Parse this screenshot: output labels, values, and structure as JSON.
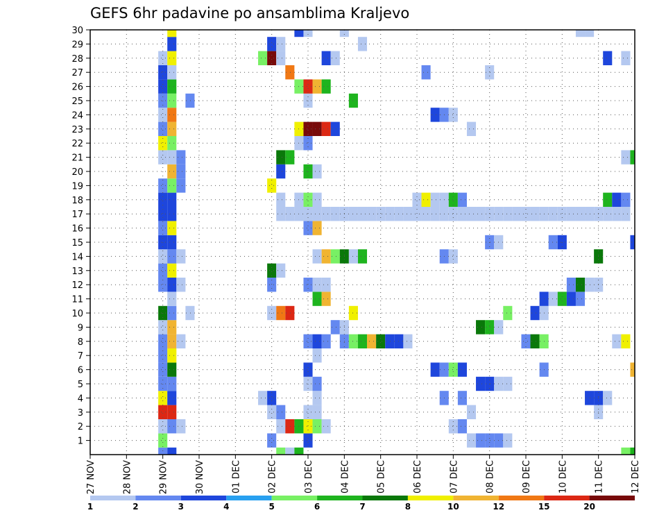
{
  "chart_data": {
    "type": "heatmap",
    "title": "GEFS 6hr padavine po ansamblima Kraljevo",
    "xlabel": "",
    "ylabel": "",
    "x_unit": "6-hour step",
    "x_start_label": "27 NOV",
    "x_ticks": [
      "27 NOV",
      "28 NOV",
      "29 NOV",
      "30 NOV",
      "01 DEC",
      "02 DEC",
      "03 DEC",
      "04 DEC",
      "05 DEC",
      "06 DEC",
      "07 DEC",
      "08 DEC",
      "09 DEC",
      "10 DEC",
      "11 DEC",
      "12 DEC"
    ],
    "xlim": [
      0,
      60
    ],
    "y_ticks": [
      1,
      2,
      3,
      4,
      5,
      6,
      7,
      8,
      9,
      10,
      11,
      12,
      13,
      14,
      15,
      16,
      17,
      18,
      19,
      20,
      21,
      22,
      23,
      24,
      25,
      26,
      27,
      28,
      29,
      30
    ],
    "ylim": [
      0,
      30
    ],
    "grid": true,
    "legend": {
      "placement": "bottom",
      "labels": [
        "1",
        "2",
        "3",
        "4",
        "5",
        "6",
        "7",
        "8",
        "10",
        "12",
        "15",
        "20"
      ],
      "colors": [
        "#b4c8f0",
        "#6488f0",
        "#1e46dc",
        "#28a0f0",
        "#78f064",
        "#1eb41e",
        "#0a780a",
        "#f0f000",
        "#f0b432",
        "#f07814",
        "#dc2814",
        "#780a0a",
        "#6e0a0a"
      ]
    },
    "levels": [
      1,
      2,
      3,
      4,
      5,
      6,
      7,
      8,
      10,
      12,
      15,
      20
    ],
    "cells": [
      {
        "x": 8,
        "y": 0,
        "v": 2
      },
      {
        "x": 9,
        "y": 0,
        "v": 3
      },
      {
        "x": 21,
        "y": 0,
        "v": 5
      },
      {
        "x": 22,
        "y": 0,
        "v": 1
      },
      {
        "x": 23,
        "y": 0,
        "v": 6
      },
      {
        "x": 59,
        "y": 0,
        "v": 5
      },
      {
        "x": 60,
        "y": 0,
        "v": 6
      },
      {
        "x": 8,
        "y": 1,
        "v": 5
      },
      {
        "x": 20,
        "y": 1,
        "v": 2
      },
      {
        "x": 24,
        "y": 1,
        "v": 3
      },
      {
        "x": 42,
        "y": 1,
        "v": 1
      },
      {
        "x": 43,
        "y": 1,
        "v": 2
      },
      {
        "x": 44,
        "y": 1,
        "v": 2
      },
      {
        "x": 45,
        "y": 1,
        "v": 2
      },
      {
        "x": 46,
        "y": 1,
        "v": 1
      },
      {
        "x": 8,
        "y": 2,
        "v": 1
      },
      {
        "x": 9,
        "y": 2,
        "v": 2
      },
      {
        "x": 10,
        "y": 2,
        "v": 1
      },
      {
        "x": 21,
        "y": 2,
        "v": 1
      },
      {
        "x": 22,
        "y": 2,
        "v": 15
      },
      {
        "x": 23,
        "y": 2,
        "v": 6
      },
      {
        "x": 24,
        "y": 2,
        "v": 8
      },
      {
        "x": 25,
        "y": 2,
        "v": 5
      },
      {
        "x": 26,
        "y": 2,
        "v": 1
      },
      {
        "x": 40,
        "y": 2,
        "v": 1
      },
      {
        "x": 41,
        "y": 2,
        "v": 2
      },
      {
        "x": 8,
        "y": 3,
        "v": 15
      },
      {
        "x": 9,
        "y": 3,
        "v": 15
      },
      {
        "x": 20,
        "y": 3,
        "v": 1
      },
      {
        "x": 21,
        "y": 3,
        "v": 2
      },
      {
        "x": 24,
        "y": 3,
        "v": 1
      },
      {
        "x": 25,
        "y": 3,
        "v": 1
      },
      {
        "x": 42,
        "y": 3,
        "v": 1
      },
      {
        "x": 56,
        "y": 3,
        "v": 1
      },
      {
        "x": 8,
        "y": 4,
        "v": 8
      },
      {
        "x": 9,
        "y": 4,
        "v": 3
      },
      {
        "x": 19,
        "y": 4,
        "v": 1
      },
      {
        "x": 20,
        "y": 4,
        "v": 3
      },
      {
        "x": 25,
        "y": 4,
        "v": 1
      },
      {
        "x": 39,
        "y": 4,
        "v": 2
      },
      {
        "x": 41,
        "y": 4,
        "v": 2
      },
      {
        "x": 55,
        "y": 4,
        "v": 3
      },
      {
        "x": 56,
        "y": 4,
        "v": 3
      },
      {
        "x": 57,
        "y": 4,
        "v": 1
      },
      {
        "x": 8,
        "y": 5,
        "v": 2
      },
      {
        "x": 9,
        "y": 5,
        "v": 2
      },
      {
        "x": 24,
        "y": 5,
        "v": 1
      },
      {
        "x": 25,
        "y": 5,
        "v": 2
      },
      {
        "x": 43,
        "y": 5,
        "v": 3
      },
      {
        "x": 44,
        "y": 5,
        "v": 3
      },
      {
        "x": 45,
        "y": 5,
        "v": 1
      },
      {
        "x": 46,
        "y": 5,
        "v": 1
      },
      {
        "x": 8,
        "y": 6,
        "v": 2
      },
      {
        "x": 9,
        "y": 6,
        "v": 7
      },
      {
        "x": 24,
        "y": 6,
        "v": 3
      },
      {
        "x": 38,
        "y": 6,
        "v": 3
      },
      {
        "x": 39,
        "y": 6,
        "v": 2
      },
      {
        "x": 40,
        "y": 6,
        "v": 5
      },
      {
        "x": 41,
        "y": 6,
        "v": 3
      },
      {
        "x": 50,
        "y": 6,
        "v": 2
      },
      {
        "x": 60,
        "y": 6,
        "v": 10
      },
      {
        "x": 8,
        "y": 7,
        "v": 2
      },
      {
        "x": 9,
        "y": 7,
        "v": 8
      },
      {
        "x": 25,
        "y": 7,
        "v": 1
      },
      {
        "x": 8,
        "y": 8,
        "v": 2
      },
      {
        "x": 9,
        "y": 8,
        "v": 10
      },
      {
        "x": 10,
        "y": 8,
        "v": 1
      },
      {
        "x": 24,
        "y": 8,
        "v": 2
      },
      {
        "x": 25,
        "y": 8,
        "v": 3
      },
      {
        "x": 26,
        "y": 8,
        "v": 2
      },
      {
        "x": 28,
        "y": 8,
        "v": 2
      },
      {
        "x": 29,
        "y": 8,
        "v": 5
      },
      {
        "x": 30,
        "y": 8,
        "v": 6
      },
      {
        "x": 31,
        "y": 8,
        "v": 10
      },
      {
        "x": 32,
        "y": 8,
        "v": 7
      },
      {
        "x": 33,
        "y": 8,
        "v": 3
      },
      {
        "x": 34,
        "y": 8,
        "v": 3
      },
      {
        "x": 35,
        "y": 8,
        "v": 1
      },
      {
        "x": 48,
        "y": 8,
        "v": 2
      },
      {
        "x": 49,
        "y": 8,
        "v": 7
      },
      {
        "x": 50,
        "y": 8,
        "v": 5
      },
      {
        "x": 58,
        "y": 8,
        "v": 1
      },
      {
        "x": 59,
        "y": 8,
        "v": 8
      },
      {
        "x": 8,
        "y": 9,
        "v": 1
      },
      {
        "x": 9,
        "y": 9,
        "v": 10
      },
      {
        "x": 27,
        "y": 9,
        "v": 2
      },
      {
        "x": 28,
        "y": 9,
        "v": 1
      },
      {
        "x": 43,
        "y": 9,
        "v": 7
      },
      {
        "x": 44,
        "y": 9,
        "v": 6
      },
      {
        "x": 45,
        "y": 9,
        "v": 1
      },
      {
        "x": 8,
        "y": 10,
        "v": 7
      },
      {
        "x": 9,
        "y": 10,
        "v": 2
      },
      {
        "x": 11,
        "y": 10,
        "v": 1
      },
      {
        "x": 20,
        "y": 10,
        "v": 1
      },
      {
        "x": 21,
        "y": 10,
        "v": 12
      },
      {
        "x": 22,
        "y": 10,
        "v": 15
      },
      {
        "x": 29,
        "y": 10,
        "v": 8
      },
      {
        "x": 46,
        "y": 10,
        "v": 5
      },
      {
        "x": 49,
        "y": 10,
        "v": 3
      },
      {
        "x": 50,
        "y": 10,
        "v": 1
      },
      {
        "x": 9,
        "y": 11,
        "v": 1
      },
      {
        "x": 25,
        "y": 11,
        "v": 6
      },
      {
        "x": 26,
        "y": 11,
        "v": 10
      },
      {
        "x": 50,
        "y": 11,
        "v": 3
      },
      {
        "x": 51,
        "y": 11,
        "v": 1
      },
      {
        "x": 52,
        "y": 11,
        "v": 6
      },
      {
        "x": 53,
        "y": 11,
        "v": 3
      },
      {
        "x": 54,
        "y": 11,
        "v": 2
      },
      {
        "x": 8,
        "y": 12,
        "v": 2
      },
      {
        "x": 9,
        "y": 12,
        "v": 3
      },
      {
        "x": 10,
        "y": 12,
        "v": 1
      },
      {
        "x": 20,
        "y": 12,
        "v": 2
      },
      {
        "x": 24,
        "y": 12,
        "v": 2
      },
      {
        "x": 25,
        "y": 12,
        "v": 1
      },
      {
        "x": 26,
        "y": 12,
        "v": 1
      },
      {
        "x": 53,
        "y": 12,
        "v": 2
      },
      {
        "x": 54,
        "y": 12,
        "v": 7
      },
      {
        "x": 55,
        "y": 12,
        "v": 1
      },
      {
        "x": 56,
        "y": 12,
        "v": 1
      },
      {
        "x": 8,
        "y": 13,
        "v": 2
      },
      {
        "x": 9,
        "y": 13,
        "v": 8
      },
      {
        "x": 20,
        "y": 13,
        "v": 7
      },
      {
        "x": 21,
        "y": 13,
        "v": 1
      },
      {
        "x": 8,
        "y": 14,
        "v": 1
      },
      {
        "x": 9,
        "y": 14,
        "v": 2
      },
      {
        "x": 10,
        "y": 14,
        "v": 1
      },
      {
        "x": 25,
        "y": 14,
        "v": 1
      },
      {
        "x": 26,
        "y": 14,
        "v": 10
      },
      {
        "x": 27,
        "y": 14,
        "v": 5
      },
      {
        "x": 28,
        "y": 14,
        "v": 7
      },
      {
        "x": 29,
        "y": 14,
        "v": 1
      },
      {
        "x": 30,
        "y": 14,
        "v": 6
      },
      {
        "x": 39,
        "y": 14,
        "v": 2
      },
      {
        "x": 40,
        "y": 14,
        "v": 1
      },
      {
        "x": 56,
        "y": 14,
        "v": 7
      },
      {
        "x": 8,
        "y": 15,
        "v": 3
      },
      {
        "x": 9,
        "y": 15,
        "v": 3
      },
      {
        "x": 44,
        "y": 15,
        "v": 2
      },
      {
        "x": 45,
        "y": 15,
        "v": 1
      },
      {
        "x": 51,
        "y": 15,
        "v": 2
      },
      {
        "x": 52,
        "y": 15,
        "v": 3
      },
      {
        "x": 60,
        "y": 15,
        "v": 3
      },
      {
        "x": 8,
        "y": 16,
        "v": 2
      },
      {
        "x": 9,
        "y": 16,
        "v": 8
      },
      {
        "x": 24,
        "y": 16,
        "v": 2
      },
      {
        "x": 25,
        "y": 16,
        "v": 10
      },
      {
        "x": 8,
        "y": 17,
        "v": 3
      },
      {
        "x": 9,
        "y": 17,
        "v": 3
      },
      {
        "x": 21,
        "y": 17,
        "v": 1
      },
      {
        "x": 22,
        "y": 17,
        "v": 1
      },
      {
        "x": 23,
        "y": 17,
        "v": 1
      },
      {
        "x": 24,
        "y": 17,
        "v": 1
      },
      {
        "x": 25,
        "y": 17,
        "v": 1
      },
      {
        "x": 26,
        "y": 17,
        "v": 1
      },
      {
        "x": 27,
        "y": 17,
        "v": 1
      },
      {
        "x": 28,
        "y": 17,
        "v": 1
      },
      {
        "x": 29,
        "y": 17,
        "v": 1
      },
      {
        "x": 30,
        "y": 17,
        "v": 1
      },
      {
        "x": 31,
        "y": 17,
        "v": 1
      },
      {
        "x": 32,
        "y": 17,
        "v": 1
      },
      {
        "x": 33,
        "y": 17,
        "v": 1
      },
      {
        "x": 34,
        "y": 17,
        "v": 1
      },
      {
        "x": 35,
        "y": 17,
        "v": 1
      },
      {
        "x": 36,
        "y": 17,
        "v": 1
      },
      {
        "x": 37,
        "y": 17,
        "v": 1
      },
      {
        "x": 38,
        "y": 17,
        "v": 1
      },
      {
        "x": 39,
        "y": 17,
        "v": 1
      },
      {
        "x": 40,
        "y": 17,
        "v": 1
      },
      {
        "x": 41,
        "y": 17,
        "v": 1
      },
      {
        "x": 42,
        "y": 17,
        "v": 1
      },
      {
        "x": 43,
        "y": 17,
        "v": 1
      },
      {
        "x": 44,
        "y": 17,
        "v": 1
      },
      {
        "x": 45,
        "y": 17,
        "v": 1
      },
      {
        "x": 46,
        "y": 17,
        "v": 1
      },
      {
        "x": 47,
        "y": 17,
        "v": 1
      },
      {
        "x": 48,
        "y": 17,
        "v": 1
      },
      {
        "x": 49,
        "y": 17,
        "v": 1
      },
      {
        "x": 50,
        "y": 17,
        "v": 1
      },
      {
        "x": 51,
        "y": 17,
        "v": 1
      },
      {
        "x": 52,
        "y": 17,
        "v": 1
      },
      {
        "x": 53,
        "y": 17,
        "v": 1
      },
      {
        "x": 54,
        "y": 17,
        "v": 1
      },
      {
        "x": 55,
        "y": 17,
        "v": 1
      },
      {
        "x": 56,
        "y": 17,
        "v": 1
      },
      {
        "x": 57,
        "y": 17,
        "v": 1
      },
      {
        "x": 58,
        "y": 17,
        "v": 1
      },
      {
        "x": 59,
        "y": 17,
        "v": 1
      },
      {
        "x": 8,
        "y": 18,
        "v": 3
      },
      {
        "x": 9,
        "y": 18,
        "v": 3
      },
      {
        "x": 21,
        "y": 18,
        "v": 1
      },
      {
        "x": 23,
        "y": 18,
        "v": 1
      },
      {
        "x": 24,
        "y": 18,
        "v": 5
      },
      {
        "x": 25,
        "y": 18,
        "v": 1
      },
      {
        "x": 36,
        "y": 18,
        "v": 1
      },
      {
        "x": 37,
        "y": 18,
        "v": 8
      },
      {
        "x": 38,
        "y": 18,
        "v": 1
      },
      {
        "x": 39,
        "y": 18,
        "v": 1
      },
      {
        "x": 40,
        "y": 18,
        "v": 6
      },
      {
        "x": 41,
        "y": 18,
        "v": 2
      },
      {
        "x": 57,
        "y": 18,
        "v": 6
      },
      {
        "x": 58,
        "y": 18,
        "v": 3
      },
      {
        "x": 59,
        "y": 18,
        "v": 2
      },
      {
        "x": 8,
        "y": 19,
        "v": 2
      },
      {
        "x": 9,
        "y": 19,
        "v": 5
      },
      {
        "x": 10,
        "y": 19,
        "v": 2
      },
      {
        "x": 20,
        "y": 19,
        "v": 8
      },
      {
        "x": 9,
        "y": 20,
        "v": 10
      },
      {
        "x": 10,
        "y": 20,
        "v": 2
      },
      {
        "x": 21,
        "y": 20,
        "v": 3
      },
      {
        "x": 24,
        "y": 20,
        "v": 6
      },
      {
        "x": 25,
        "y": 20,
        "v": 1
      },
      {
        "x": 8,
        "y": 21,
        "v": 1
      },
      {
        "x": 9,
        "y": 21,
        "v": 1
      },
      {
        "x": 10,
        "y": 21,
        "v": 2
      },
      {
        "x": 21,
        "y": 21,
        "v": 7
      },
      {
        "x": 22,
        "y": 21,
        "v": 6
      },
      {
        "x": 59,
        "y": 21,
        "v": 1
      },
      {
        "x": 60,
        "y": 21,
        "v": 6
      },
      {
        "x": 8,
        "y": 22,
        "v": 8
      },
      {
        "x": 9,
        "y": 22,
        "v": 5
      },
      {
        "x": 23,
        "y": 22,
        "v": 1
      },
      {
        "x": 24,
        "y": 22,
        "v": 2
      },
      {
        "x": 8,
        "y": 23,
        "v": 2
      },
      {
        "x": 9,
        "y": 23,
        "v": 10
      },
      {
        "x": 23,
        "y": 23,
        "v": 8
      },
      {
        "x": 24,
        "y": 23,
        "v": 20
      },
      {
        "x": 25,
        "y": 23,
        "v": 20
      },
      {
        "x": 26,
        "y": 23,
        "v": 15
      },
      {
        "x": 27,
        "y": 23,
        "v": 3
      },
      {
        "x": 42,
        "y": 23,
        "v": 1
      },
      {
        "x": 8,
        "y": 24,
        "v": 1
      },
      {
        "x": 9,
        "y": 24,
        "v": 12
      },
      {
        "x": 38,
        "y": 24,
        "v": 3
      },
      {
        "x": 39,
        "y": 24,
        "v": 2
      },
      {
        "x": 40,
        "y": 24,
        "v": 1
      },
      {
        "x": 8,
        "y": 25,
        "v": 2
      },
      {
        "x": 9,
        "y": 25,
        "v": 5
      },
      {
        "x": 11,
        "y": 25,
        "v": 2
      },
      {
        "x": 24,
        "y": 25,
        "v": 1
      },
      {
        "x": 29,
        "y": 25,
        "v": 6
      },
      {
        "x": 8,
        "y": 26,
        "v": 3
      },
      {
        "x": 9,
        "y": 26,
        "v": 6
      },
      {
        "x": 23,
        "y": 26,
        "v": 5
      },
      {
        "x": 24,
        "y": 26,
        "v": 15
      },
      {
        "x": 25,
        "y": 26,
        "v": 10
      },
      {
        "x": 26,
        "y": 26,
        "v": 6
      },
      {
        "x": 8,
        "y": 27,
        "v": 3
      },
      {
        "x": 9,
        "y": 27,
        "v": 1
      },
      {
        "x": 22,
        "y": 27,
        "v": 12
      },
      {
        "x": 37,
        "y": 27,
        "v": 2
      },
      {
        "x": 44,
        "y": 27,
        "v": 1
      },
      {
        "x": 8,
        "y": 28,
        "v": 1
      },
      {
        "x": 9,
        "y": 28,
        "v": 8
      },
      {
        "x": 19,
        "y": 28,
        "v": 5
      },
      {
        "x": 20,
        "y": 28,
        "v": 20
      },
      {
        "x": 21,
        "y": 28,
        "v": 1
      },
      {
        "x": 26,
        "y": 28,
        "v": 3
      },
      {
        "x": 27,
        "y": 28,
        "v": 1
      },
      {
        "x": 57,
        "y": 28,
        "v": 3
      },
      {
        "x": 59,
        "y": 28,
        "v": 1
      },
      {
        "x": 9,
        "y": 29,
        "v": 3
      },
      {
        "x": 20,
        "y": 29,
        "v": 3
      },
      {
        "x": 21,
        "y": 29,
        "v": 1
      },
      {
        "x": 30,
        "y": 29,
        "v": 1
      },
      {
        "x": 9,
        "y": 30,
        "v": 8
      },
      {
        "x": 23,
        "y": 30,
        "v": 3
      },
      {
        "x": 24,
        "y": 30,
        "v": 1
      },
      {
        "x": 28,
        "y": 30,
        "v": 1
      },
      {
        "x": 54,
        "y": 30,
        "v": 1
      },
      {
        "x": 55,
        "y": 30,
        "v": 1
      }
    ]
  }
}
